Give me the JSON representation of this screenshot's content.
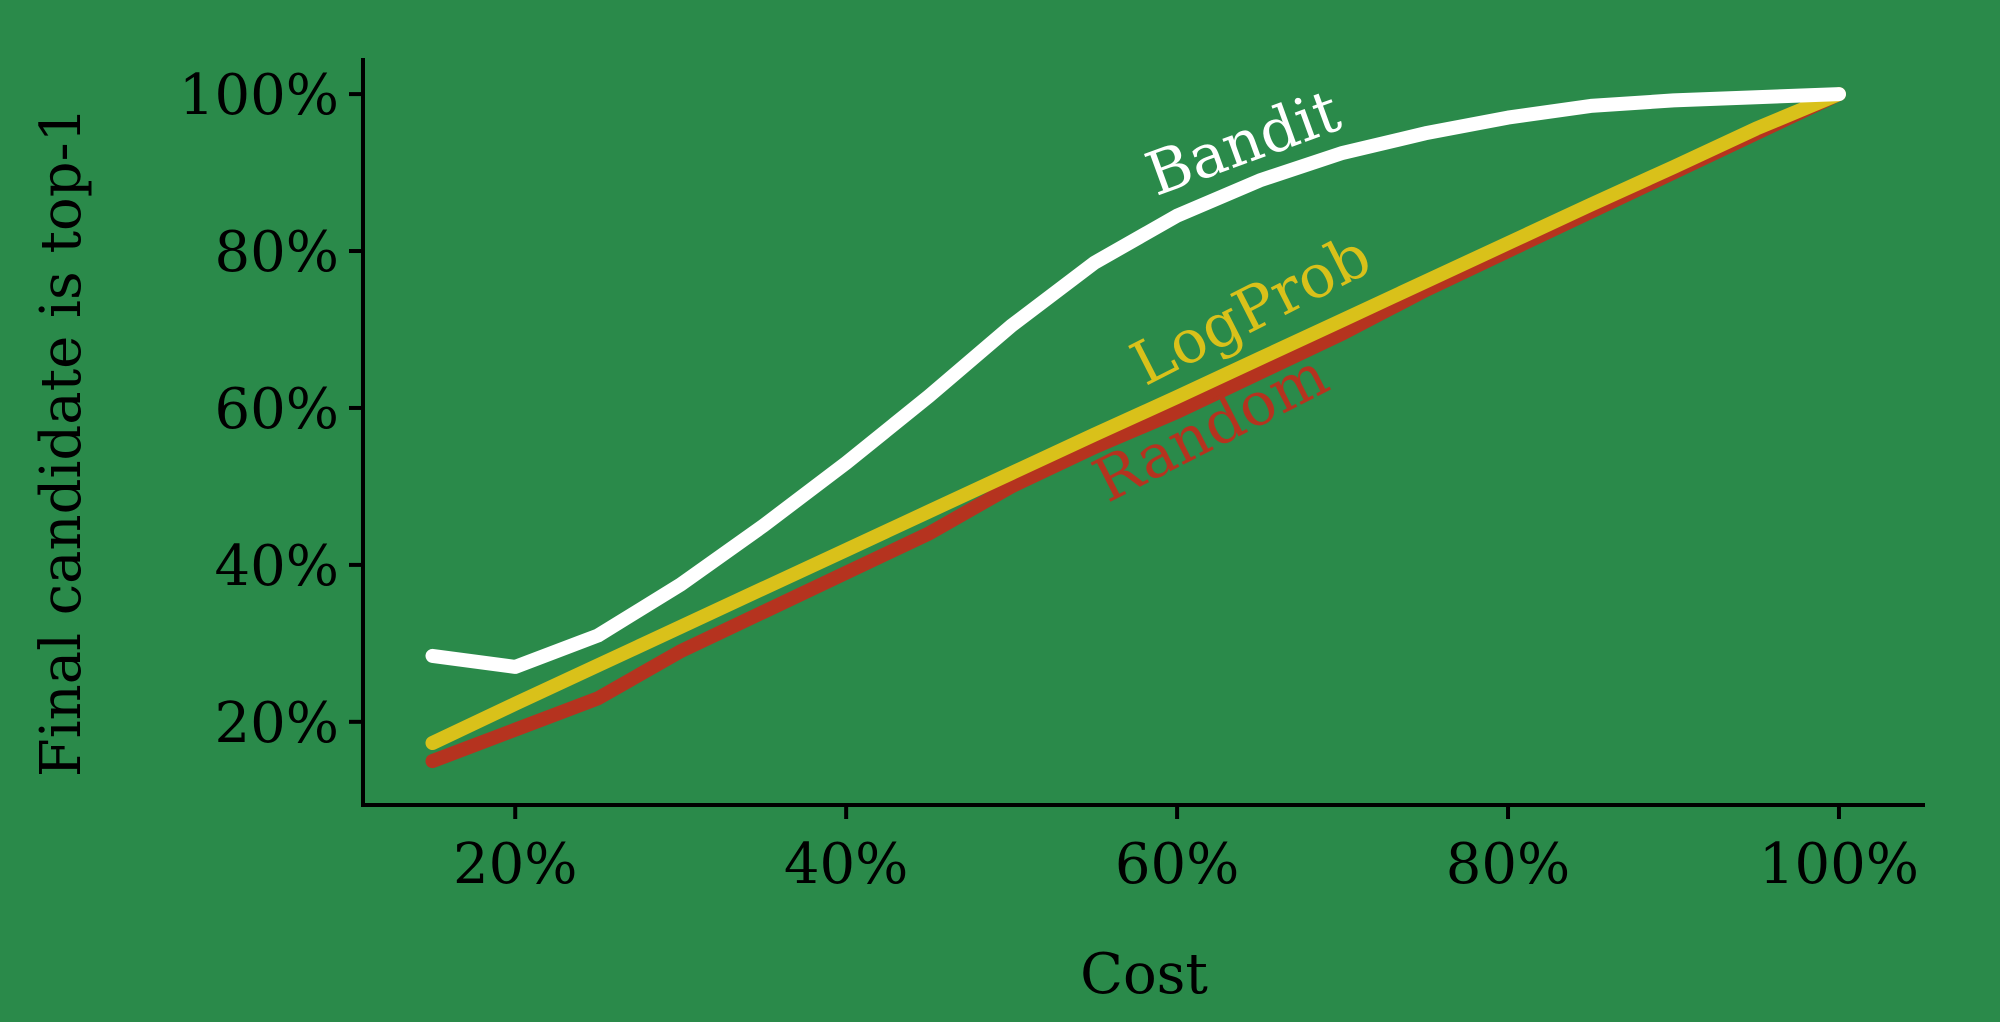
{
  "chart_data": {
    "type": "line",
    "xlabel": "Cost",
    "ylabel": "Final candidate is top-1",
    "xlim": [
      10.8,
      105.2
    ],
    "ylim": [
      9.4,
      104.6
    ],
    "x_ticks": [
      {
        "value": 20,
        "label": "20%"
      },
      {
        "value": 40,
        "label": "40%"
      },
      {
        "value": 60,
        "label": "60%"
      },
      {
        "value": 80,
        "label": "80%"
      },
      {
        "value": 100,
        "label": "100%"
      }
    ],
    "y_ticks": [
      {
        "value": 20,
        "label": "20%"
      },
      {
        "value": 40,
        "label": "40%"
      },
      {
        "value": 60,
        "label": "60%"
      },
      {
        "value": 80,
        "label": "80%"
      },
      {
        "value": 100,
        "label": "100%"
      }
    ],
    "series": [
      {
        "name": "Random",
        "color": "#b5331f",
        "x": [
          15,
          20,
          25,
          30,
          35,
          40,
          45,
          50,
          55,
          60,
          65,
          70,
          75,
          80,
          85,
          90,
          95,
          100
        ],
        "y": [
          15,
          19,
          23,
          29,
          34,
          39,
          44,
          50,
          55,
          59.5,
          64.5,
          69.5,
          75,
          80,
          85,
          90,
          95,
          100
        ]
      },
      {
        "name": "LogProb",
        "color": "#d9c11a",
        "x": [
          15,
          20,
          25,
          30,
          35,
          40,
          45,
          50,
          55,
          60,
          65,
          70,
          75,
          80,
          85,
          90,
          95,
          100
        ],
        "y": [
          17.3,
          22.3,
          27.2,
          32.1,
          37,
          41.9,
          46.8,
          51.7,
          56.6,
          61.4,
          66.3,
          71.2,
          76.1,
          81,
          85.9,
          90.7,
          95.6,
          100
        ]
      },
      {
        "name": "Bandit",
        "color": "#ffffff",
        "x": [
          15,
          20,
          25,
          30,
          35,
          40,
          45,
          50,
          55,
          60,
          65,
          70,
          75,
          80,
          85,
          90,
          95,
          100
        ],
        "y": [
          28.4,
          27,
          31,
          37.5,
          45,
          53,
          61.5,
          70.5,
          78.5,
          84.5,
          89,
          92.5,
          95,
          97,
          98.5,
          99.2,
          99.6,
          100
        ]
      }
    ]
  }
}
